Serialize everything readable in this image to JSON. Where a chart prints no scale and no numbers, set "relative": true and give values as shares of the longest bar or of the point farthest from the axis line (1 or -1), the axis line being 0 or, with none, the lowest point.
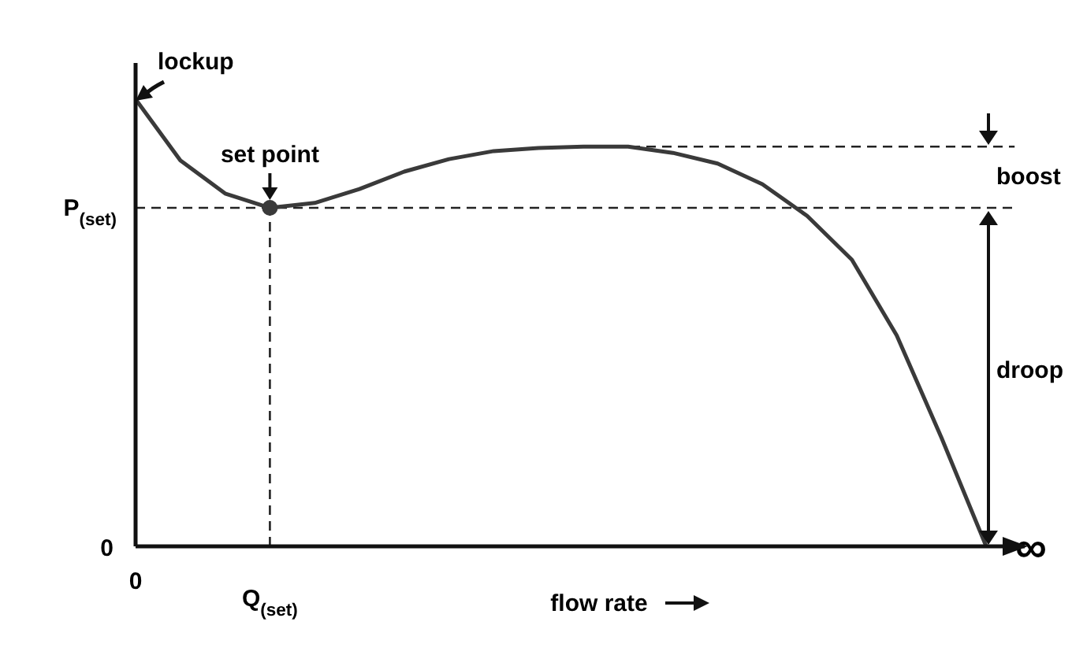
{
  "chart_data": {
    "type": "line",
    "relative": true,
    "xlabel": "flow rate",
    "categories": [
      "0",
      null,
      null,
      "Q$_{(set)}$",
      null,
      null,
      null,
      null,
      null,
      null,
      null,
      null,
      null,
      null,
      null,
      null,
      null,
      null,
      null,
      null,
      "∞"
    ],
    "series": [
      {
        "color": "#3a3a3a",
        "line_style": "solid",
        "marker": "none",
        "values": [
          1,
          0.863,
          0.789,
          0.757,
          0.768,
          0.799,
          0.838,
          0.866,
          0.884,
          0.891,
          0.894,
          0.894,
          0.88,
          0.856,
          0.81,
          0.739,
          0.641,
          0.472,
          0.243,
          0,
          null
        ]
      }
    ],
    "ref_lines": [
      {
        "axis": "y",
        "value": 0.757,
        "label": "P$_{(set)}$",
        "line_style": "dashed",
        "color": "#222222"
      },
      {
        "axis": "y",
        "value": 0.894,
        "line_style": "dashed",
        "color": "#222222"
      },
      {
        "axis": "x",
        "value": "Q$_{(set)}$",
        "line_style": "dashed",
        "color": "#222222"
      }
    ],
    "annotations": [
      "lockup",
      "set point",
      "boost",
      "droop",
      "0"
    ]
  }
}
